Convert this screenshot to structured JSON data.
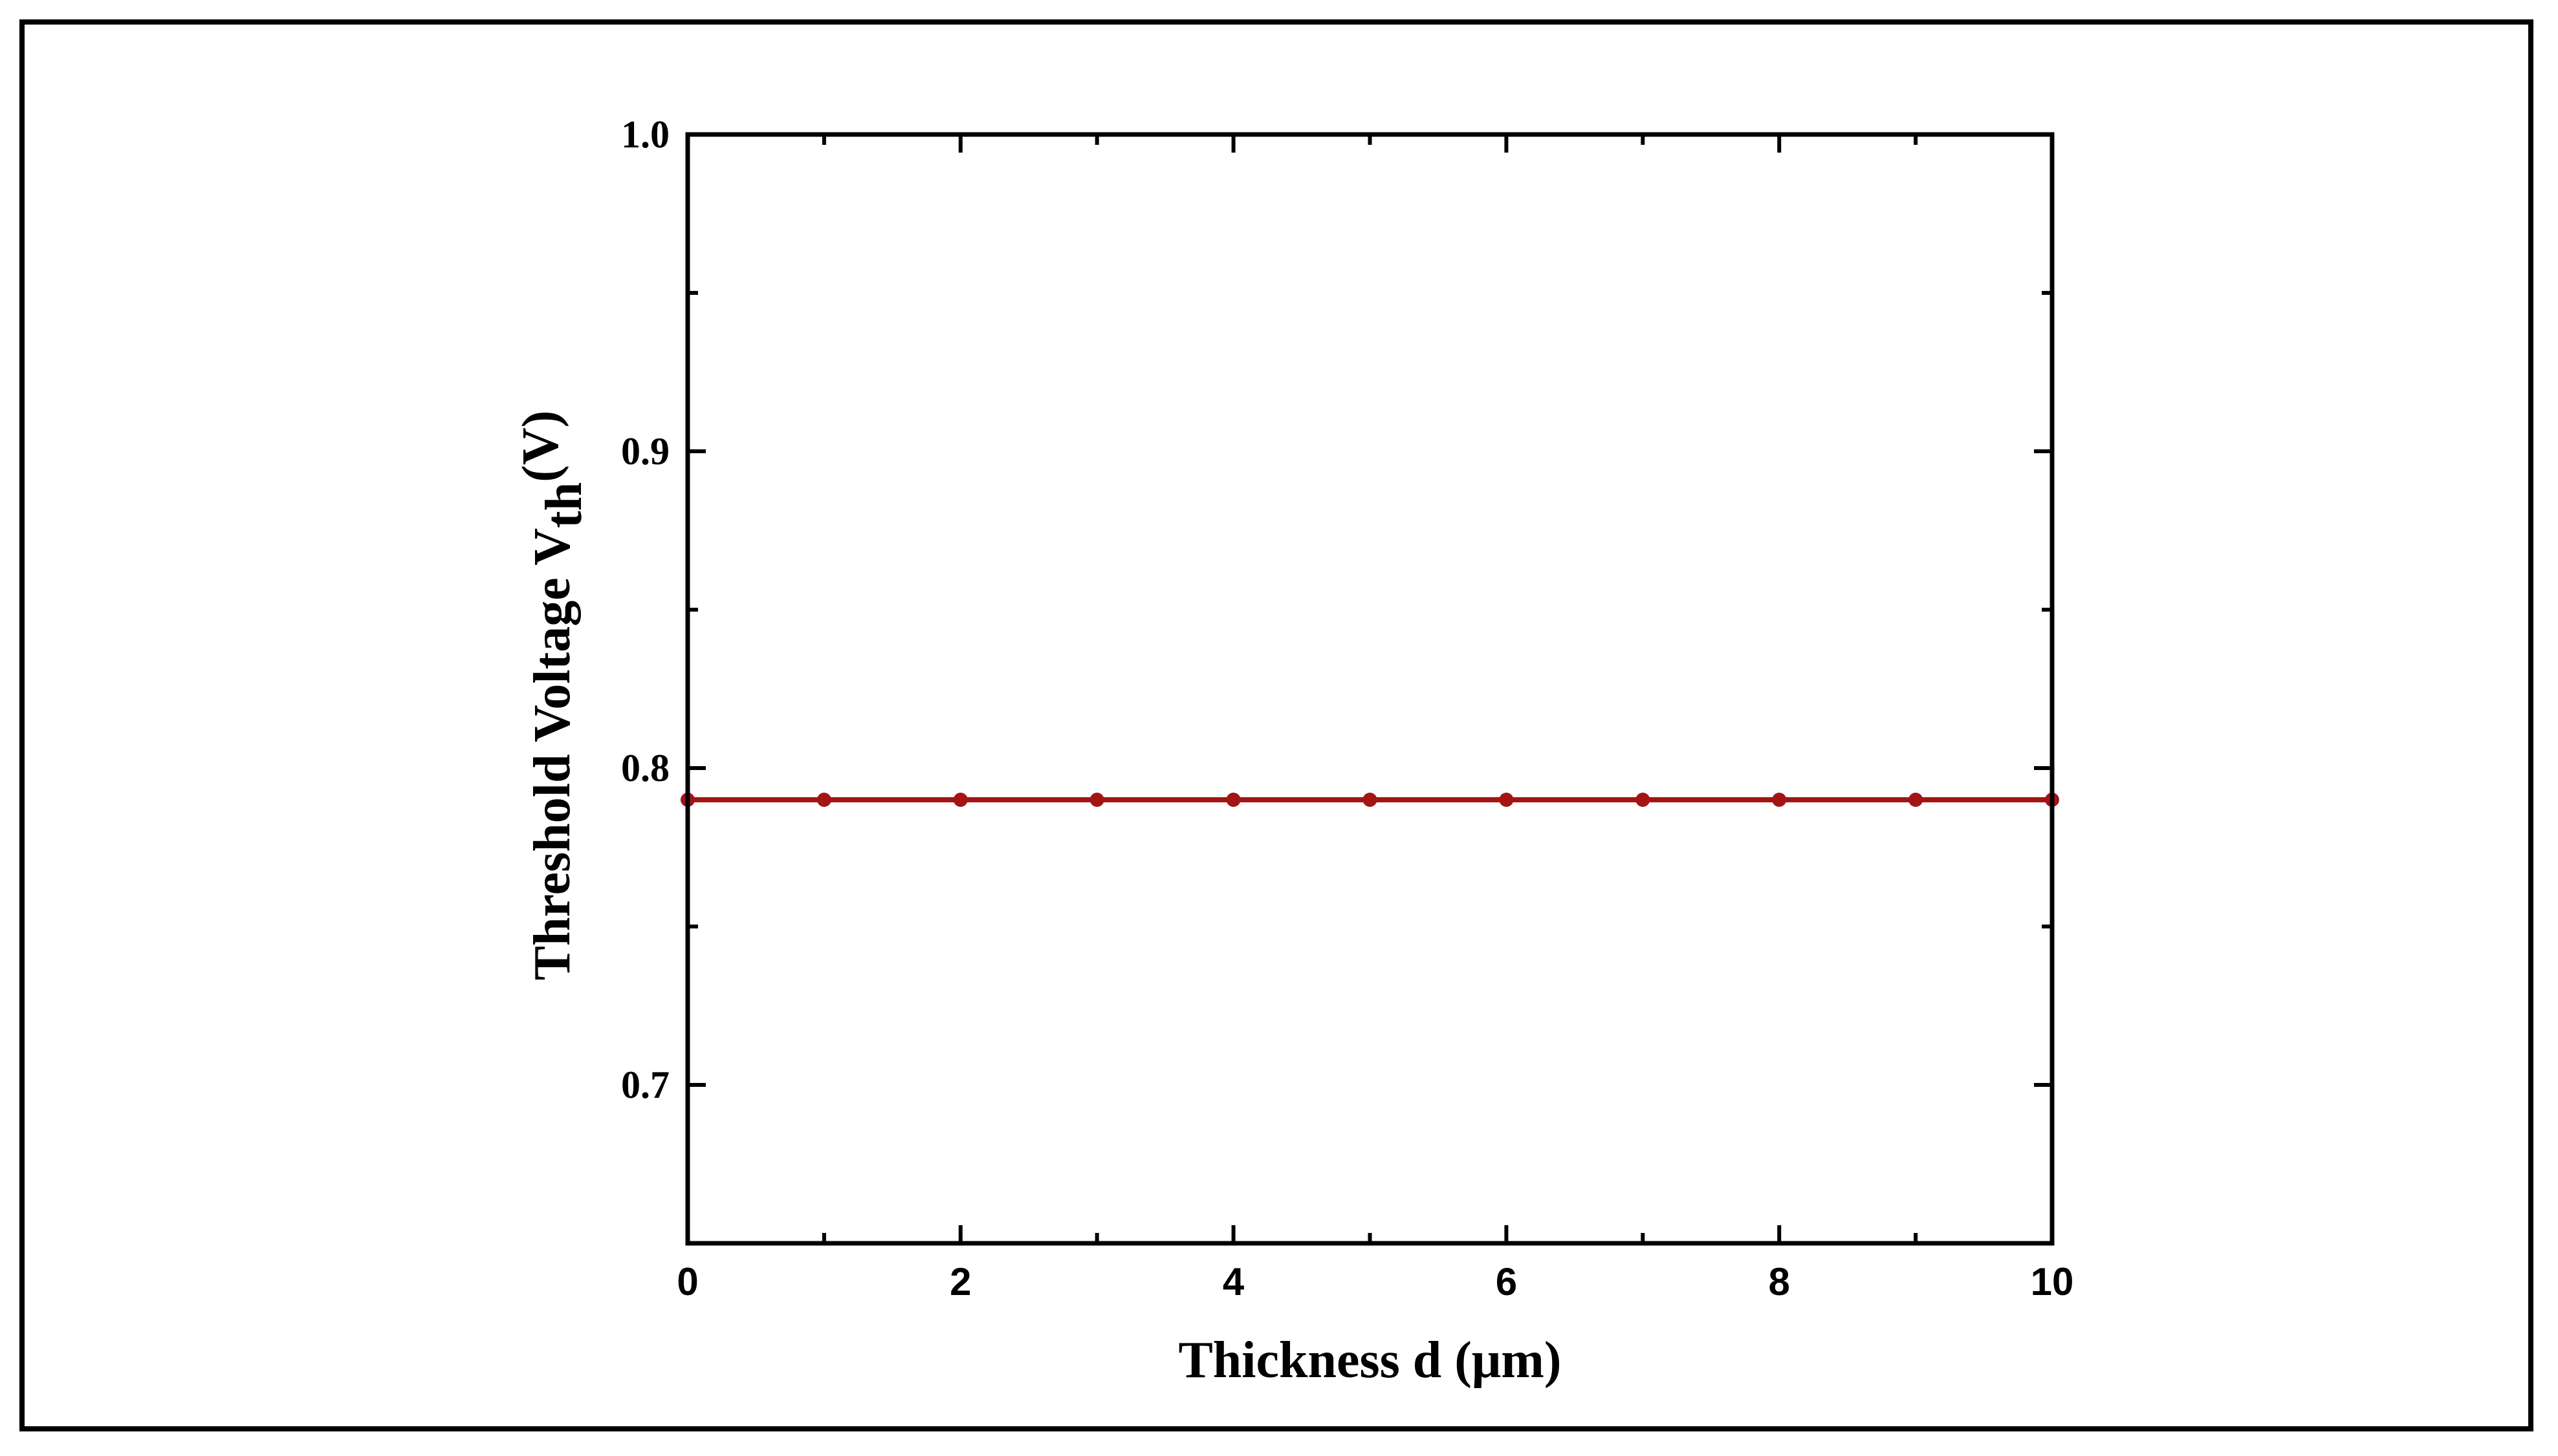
{
  "chart_data": {
    "type": "line",
    "title": "",
    "xlabel": "Thickness d (μm)",
    "ylabel": {
      "main": "Threshold Voltage V",
      "sub": "th",
      "suffix": "(V)"
    },
    "xlim": [
      0,
      10
    ],
    "ylim": [
      0.65,
      1.0
    ],
    "xticks": [
      0,
      2,
      4,
      6,
      8,
      10
    ],
    "xtick_labels": [
      "0",
      "2",
      "4",
      "6",
      "8",
      "10"
    ],
    "xminor": [
      1,
      3,
      5,
      7,
      9
    ],
    "yticks": [
      0.7,
      0.8,
      0.9,
      1.0
    ],
    "ytick_labels": [
      "0.7",
      "0.8",
      "0.9",
      "1.0"
    ],
    "yminor": [
      0.75,
      0.85,
      0.95
    ],
    "grid": false,
    "series": [
      {
        "color": "#a31515",
        "x": [
          0,
          1,
          2,
          3,
          4,
          5,
          6,
          7,
          8,
          9,
          10
        ],
        "y": [
          0.79,
          0.79,
          0.79,
          0.79,
          0.79,
          0.79,
          0.79,
          0.79,
          0.79,
          0.79,
          0.79
        ]
      }
    ]
  }
}
